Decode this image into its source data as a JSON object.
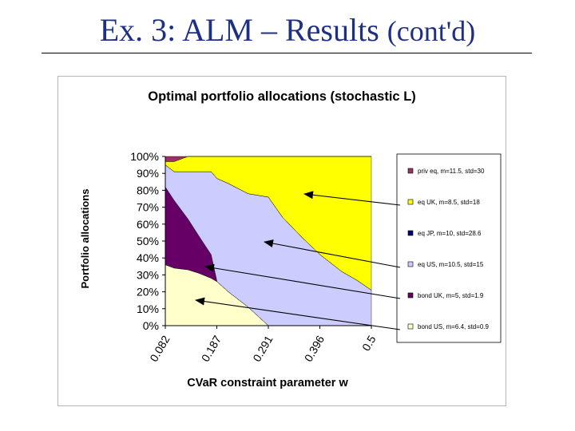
{
  "slide": {
    "title_main": "Ex. 3: ALM – Results ",
    "title_cont": "(cont'd)"
  },
  "chart_data": {
    "type": "area",
    "stacked": true,
    "title": "Optimal portfolio allocations (stochastic L)",
    "xlabel": "CVaR constraint parameter w",
    "ylabel": "Portfolio allocations",
    "x": [
      0.082,
      0.1,
      0.128,
      0.15,
      0.175,
      0.187,
      0.21,
      0.25,
      0.291,
      0.32,
      0.36,
      0.396,
      0.44,
      0.47,
      0.5
    ],
    "x_ticks": [
      "0.082",
      "0.187",
      "0.291",
      "0.396",
      "0.5"
    ],
    "ylim": [
      0,
      100
    ],
    "y_ticks": [
      "0%",
      "10%",
      "20%",
      "30%",
      "40%",
      "50%",
      "60%",
      "70%",
      "80%",
      "90%",
      "100%"
    ],
    "series": [
      {
        "name": "bond US, m=6.4, std=0.9",
        "color": "#FFFFCC",
        "values": [
          36,
          34,
          33,
          31,
          28,
          26,
          20,
          11,
          0,
          0,
          0,
          0,
          0,
          0,
          0
        ]
      },
      {
        "name": "bond UK, m=5, std=1.9",
        "color": "#660066",
        "values": [
          46,
          40,
          30,
          22,
          14,
          0,
          0,
          0,
          0,
          0,
          0,
          0,
          0,
          0,
          0
        ]
      },
      {
        "name": "eq US, m=10.5, std=15",
        "color": "#CCCCFF",
        "values": [
          13,
          17,
          28,
          38,
          49,
          61,
          64,
          67,
          76,
          64,
          52,
          42,
          32,
          27,
          21
        ]
      },
      {
        "name": "eq JP, m=10, std=28.6",
        "color": "#000080",
        "values": [
          0,
          0,
          0,
          0,
          0,
          0,
          0,
          0,
          0,
          0,
          0,
          0,
          0,
          0,
          0
        ]
      },
      {
        "name": "eq UK, m=8.5, std=18",
        "color": "#FFFF00",
        "values": [
          2,
          6,
          9,
          9,
          9,
          13,
          16,
          22,
          24,
          36,
          48,
          58,
          68,
          73,
          79
        ]
      },
      {
        "name": "priv eq, m=11.5, std=30",
        "color": "#993366",
        "values": [
          3,
          3,
          0,
          0,
          0,
          0,
          0,
          0,
          0,
          0,
          0,
          0,
          0,
          0,
          0
        ]
      }
    ],
    "legend_order": [
      "priv eq, m=11.5, std=30",
      "eq UK, m=8.5, std=18",
      "eq JP, m=10, std=28.6",
      "eq US, m=10.5, std=15",
      "bond UK, m=5, std=1.9",
      "bond US, m=6.4, std=0.9"
    ],
    "legend_position": "right",
    "grid": false,
    "annotations": "arrows from legend entries eq UK, eq US, bond UK and bond US pointing into their areas"
  }
}
